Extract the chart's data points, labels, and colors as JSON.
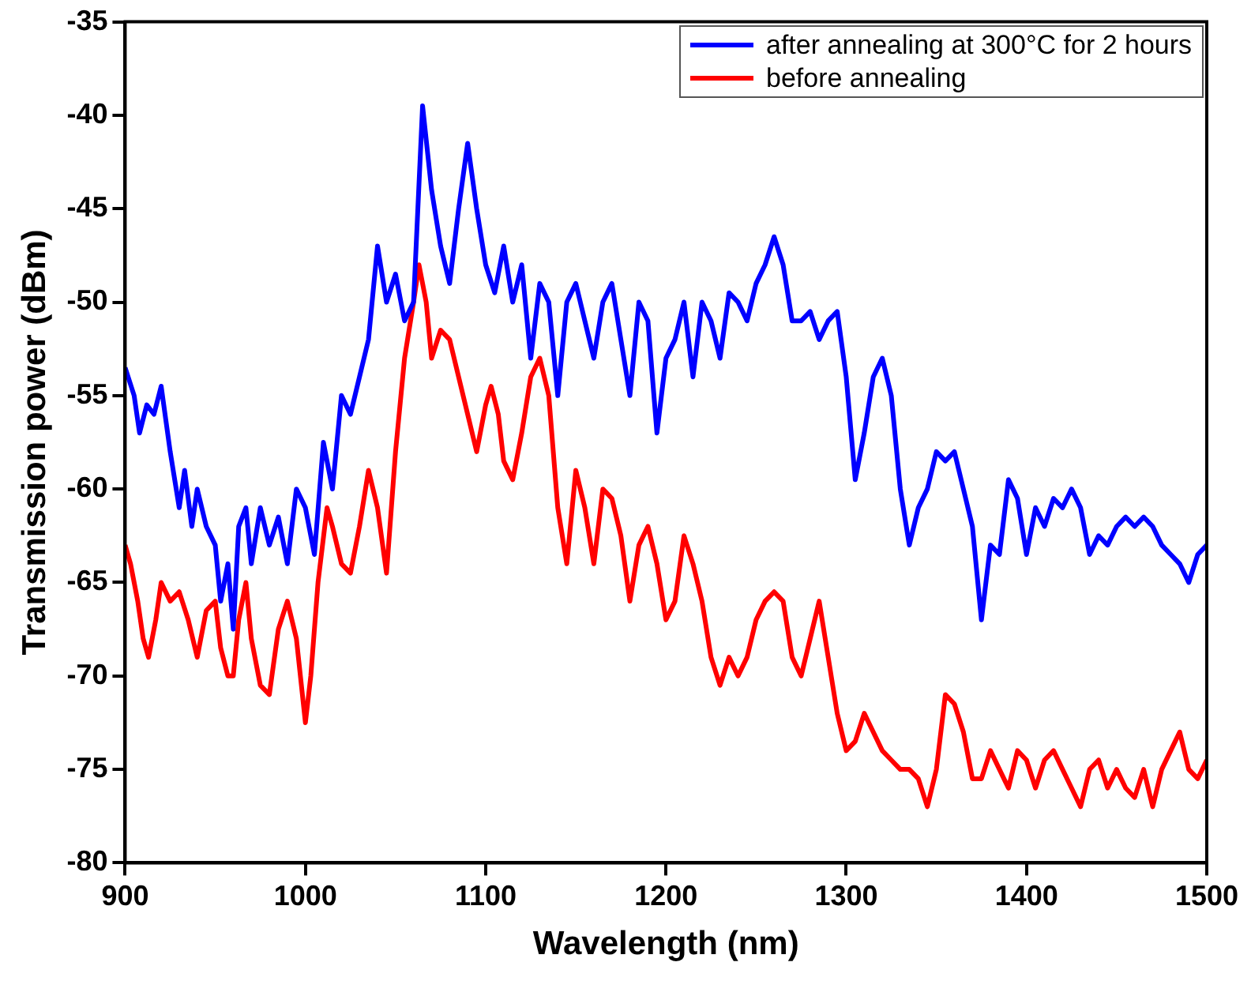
{
  "chart_data": {
    "type": "line",
    "xlabel": "Wavelength (nm)",
    "ylabel": "Transmission power (dBm)",
    "xlim": [
      900,
      1500
    ],
    "xticks": [
      900,
      1000,
      1100,
      1200,
      1300,
      1400,
      1500
    ],
    "ylim": [
      -80,
      -35
    ],
    "yticks": [
      -80,
      -75,
      -70,
      -65,
      -60,
      -55,
      -50,
      -45,
      -40,
      -35
    ],
    "grid": false,
    "legend": "top right",
    "marker": "none",
    "line_style": "solid",
    "series": [
      {
        "name": "after annealing at 300°C for 2 hours",
        "color": "#0000ff",
        "x": [
          900,
          905,
          908,
          912,
          916,
          920,
          925,
          930,
          933,
          937,
          940,
          945,
          950,
          953,
          957,
          960,
          963,
          967,
          970,
          975,
          980,
          985,
          990,
          995,
          1000,
          1005,
          1010,
          1015,
          1020,
          1025,
          1030,
          1035,
          1040,
          1045,
          1050,
          1055,
          1060,
          1065,
          1070,
          1075,
          1080,
          1085,
          1090,
          1095,
          1100,
          1105,
          1110,
          1115,
          1120,
          1125,
          1130,
          1135,
          1140,
          1145,
          1150,
          1155,
          1160,
          1165,
          1170,
          1175,
          1180,
          1185,
          1190,
          1195,
          1200,
          1205,
          1210,
          1215,
          1220,
          1225,
          1230,
          1235,
          1240,
          1245,
          1250,
          1255,
          1260,
          1265,
          1270,
          1275,
          1280,
          1285,
          1290,
          1295,
          1300,
          1305,
          1310,
          1315,
          1320,
          1325,
          1330,
          1335,
          1340,
          1345,
          1350,
          1355,
          1360,
          1365,
          1370,
          1375,
          1380,
          1385,
          1390,
          1395,
          1400,
          1405,
          1410,
          1415,
          1420,
          1425,
          1430,
          1435,
          1440,
          1445,
          1450,
          1455,
          1460,
          1465,
          1470,
          1475,
          1480,
          1485,
          1490,
          1495,
          1500
        ],
        "values": [
          -53.5,
          -55,
          -57,
          -55.5,
          -56,
          -54.5,
          -58,
          -61,
          -59,
          -62,
          -60,
          -62,
          -63,
          -66,
          -64,
          -67.5,
          -62,
          -61,
          -64,
          -61,
          -63,
          -61.5,
          -64,
          -60,
          -61,
          -63.5,
          -57.5,
          -60,
          -55,
          -56,
          -54,
          -52,
          -47,
          -50,
          -48.5,
          -51,
          -50,
          -39.5,
          -44,
          -47,
          -49,
          -45,
          -41.5,
          -45,
          -48,
          -49.5,
          -47,
          -50,
          -48,
          -53,
          -49,
          -50,
          -55,
          -50,
          -49,
          -51,
          -53,
          -50,
          -49,
          -52,
          -55,
          -50,
          -51,
          -57,
          -53,
          -52,
          -50,
          -54,
          -50,
          -51,
          -53,
          -49.5,
          -50,
          -51,
          -49,
          -48,
          -46.5,
          -48,
          -51,
          -51,
          -50.5,
          -52,
          -51,
          -50.5,
          -54,
          -59.5,
          -57,
          -54,
          -53,
          -55,
          -60,
          -63,
          -61,
          -60,
          -58,
          -58.5,
          -58,
          -60,
          -62,
          -67,
          -63,
          -63.5,
          -59.5,
          -60.5,
          -63.5,
          -61,
          -62,
          -60.5,
          -61,
          -60,
          -61,
          -63.5,
          -62.5,
          -63,
          -62,
          -61.5,
          -62,
          -61.5,
          -62,
          -63,
          -63.5,
          -64,
          -65,
          -63.5,
          -63
        ]
      },
      {
        "name": "before annealing",
        "color": "#ff0000",
        "x": [
          900,
          903,
          907,
          910,
          913,
          917,
          920,
          925,
          930,
          935,
          940,
          945,
          950,
          953,
          957,
          960,
          963,
          967,
          970,
          975,
          980,
          985,
          990,
          995,
          1000,
          1003,
          1007,
          1012,
          1015,
          1020,
          1025,
          1030,
          1035,
          1040,
          1045,
          1050,
          1055,
          1060,
          1063,
          1067,
          1070,
          1075,
          1080,
          1085,
          1090,
          1095,
          1100,
          1103,
          1107,
          1110,
          1115,
          1120,
          1125,
          1130,
          1135,
          1140,
          1145,
          1150,
          1155,
          1160,
          1165,
          1170,
          1175,
          1180,
          1185,
          1190,
          1195,
          1200,
          1205,
          1210,
          1215,
          1220,
          1225,
          1230,
          1235,
          1240,
          1245,
          1250,
          1255,
          1260,
          1265,
          1270,
          1275,
          1280,
          1285,
          1290,
          1295,
          1300,
          1305,
          1310,
          1315,
          1320,
          1325,
          1330,
          1335,
          1340,
          1345,
          1350,
          1355,
          1360,
          1365,
          1370,
          1375,
          1380,
          1385,
          1390,
          1395,
          1400,
          1405,
          1410,
          1415,
          1420,
          1425,
          1430,
          1435,
          1440,
          1445,
          1450,
          1455,
          1460,
          1465,
          1470,
          1475,
          1480,
          1485,
          1490,
          1495,
          1500
        ],
        "values": [
          -63,
          -64,
          -66,
          -68,
          -69,
          -67,
          -65,
          -66,
          -65.5,
          -67,
          -69,
          -66.5,
          -66,
          -68.5,
          -70,
          -70,
          -67,
          -65,
          -68,
          -70.5,
          -71,
          -67.5,
          -66,
          -68,
          -72.5,
          -70,
          -65,
          -61,
          -62,
          -64,
          -64.5,
          -62,
          -59,
          -61,
          -64.5,
          -58,
          -53,
          -50,
          -48,
          -50,
          -53,
          -51.5,
          -52,
          -54,
          -56,
          -58,
          -55.5,
          -54.5,
          -56,
          -58.5,
          -59.5,
          -57,
          -54,
          -53,
          -55,
          -61,
          -64,
          -59,
          -61,
          -64,
          -60,
          -60.5,
          -62.5,
          -66,
          -63,
          -62,
          -64,
          -67,
          -66,
          -62.5,
          -64,
          -66,
          -69,
          -70.5,
          -69,
          -70,
          -69,
          -67,
          -66,
          -65.5,
          -66,
          -69,
          -70,
          -68,
          -66,
          -69,
          -72,
          -74,
          -73.5,
          -72,
          -73,
          -74,
          -74.5,
          -75,
          -75,
          -75.5,
          -77,
          -75,
          -71,
          -71.5,
          -73,
          -75.5,
          -75.5,
          -74,
          -75,
          -76,
          -74,
          -74.5,
          -76,
          -74.5,
          -74,
          -75,
          -76,
          -77,
          -75,
          -74.5,
          -76,
          -75,
          -76,
          -76.5,
          -75,
          -77,
          -75,
          -74,
          -73,
          -75,
          -75.5,
          -74.5
        ]
      }
    ]
  }
}
